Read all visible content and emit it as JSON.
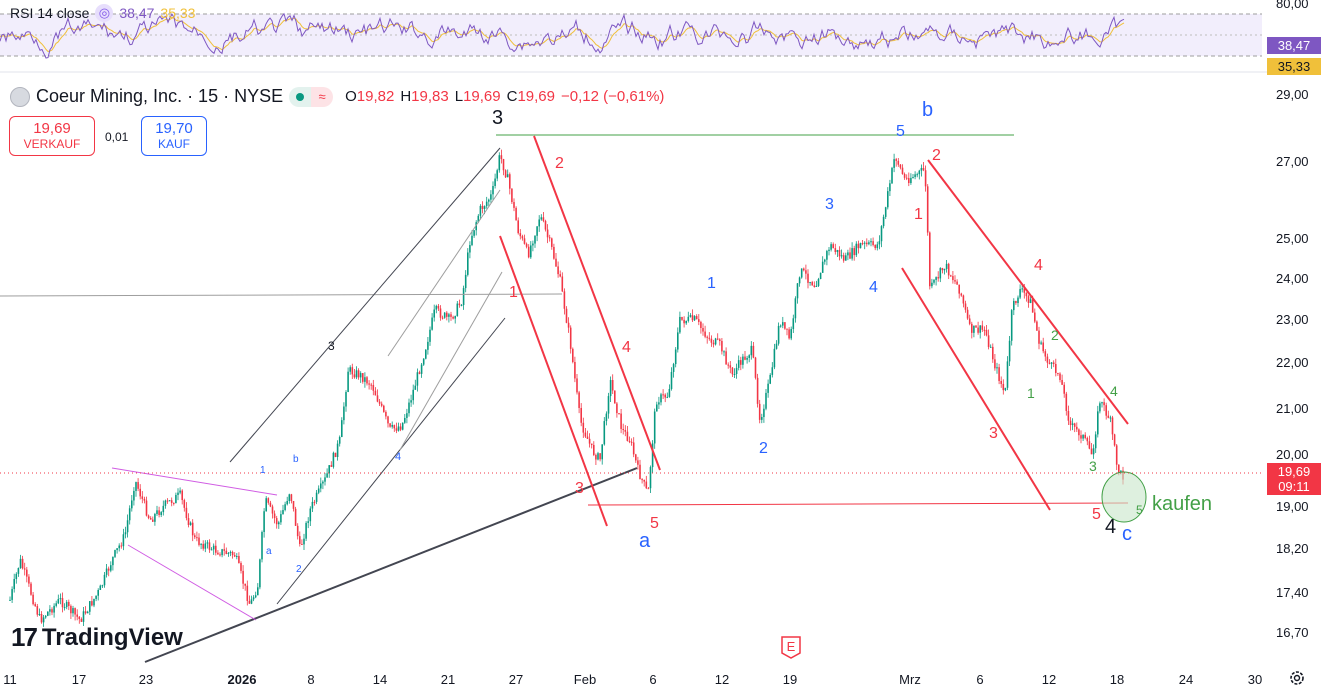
{
  "rsi": {
    "label": "RSI 14 close",
    "value1": "38,47",
    "value2": "35,33",
    "axis_top": "80,00",
    "tag1": "38,47",
    "tag2": "35,33"
  },
  "symbol": {
    "title": "Coeur Mining, Inc. · 15 · NYSE",
    "open_label": "O",
    "open": "19,82",
    "high_label": "H",
    "high": "19,83",
    "low_label": "L",
    "low": "19,69",
    "close_label": "C",
    "close": "19,69",
    "change": "−0,12 (−0,61%)"
  },
  "trade": {
    "sell_price": "19,69",
    "sell_label": "VERKAUF",
    "spread": "0,01",
    "buy_price": "19,70",
    "buy_label": "KAUF"
  },
  "price_tag": {
    "price": "19,69",
    "timer": "09:11"
  },
  "y_axis": [
    "29,00",
    "27,00",
    "25,00",
    "24,00",
    "23,00",
    "22,00",
    "21,00",
    "20,00",
    "19,00",
    "18,20",
    "17,40",
    "16,70"
  ],
  "x_axis": [
    "11",
    "17",
    "23",
    "2026",
    "8",
    "14",
    "21",
    "27",
    "Feb",
    "6",
    "12",
    "19",
    "Mrz",
    "6",
    "12",
    "18",
    "24",
    "30"
  ],
  "wave_labels": {
    "big3": "3",
    "b": "b",
    "b5": "5",
    "a": "a",
    "a5": "5",
    "a3": "3",
    "a4": "4",
    "a2": "2",
    "a1": "1",
    "up1": "1",
    "up2": "2",
    "up3": "3",
    "up4": "4",
    "c1": "1",
    "c2": "2",
    "c3": "3",
    "c4": "4",
    "c5": "5",
    "big4": "4",
    "c": "c",
    "g1": "1",
    "g2": "2",
    "g3": "3",
    "g4": "4",
    "g5": "5",
    "small3": "3",
    "small4": "4",
    "s1": "1",
    "sb": "b",
    "sa": "a",
    "s2": "2",
    "kaufen": "kaufen"
  },
  "earnings_badge": "E",
  "brand": "TradingView",
  "colors": {
    "up": "#089981",
    "down": "#f23645",
    "rsi": "#7e57c2",
    "rsi_ma": "#f0c03a",
    "wave_red": "#f23645",
    "wave_blue": "#2962ff",
    "wave_green": "#43a047"
  }
}
